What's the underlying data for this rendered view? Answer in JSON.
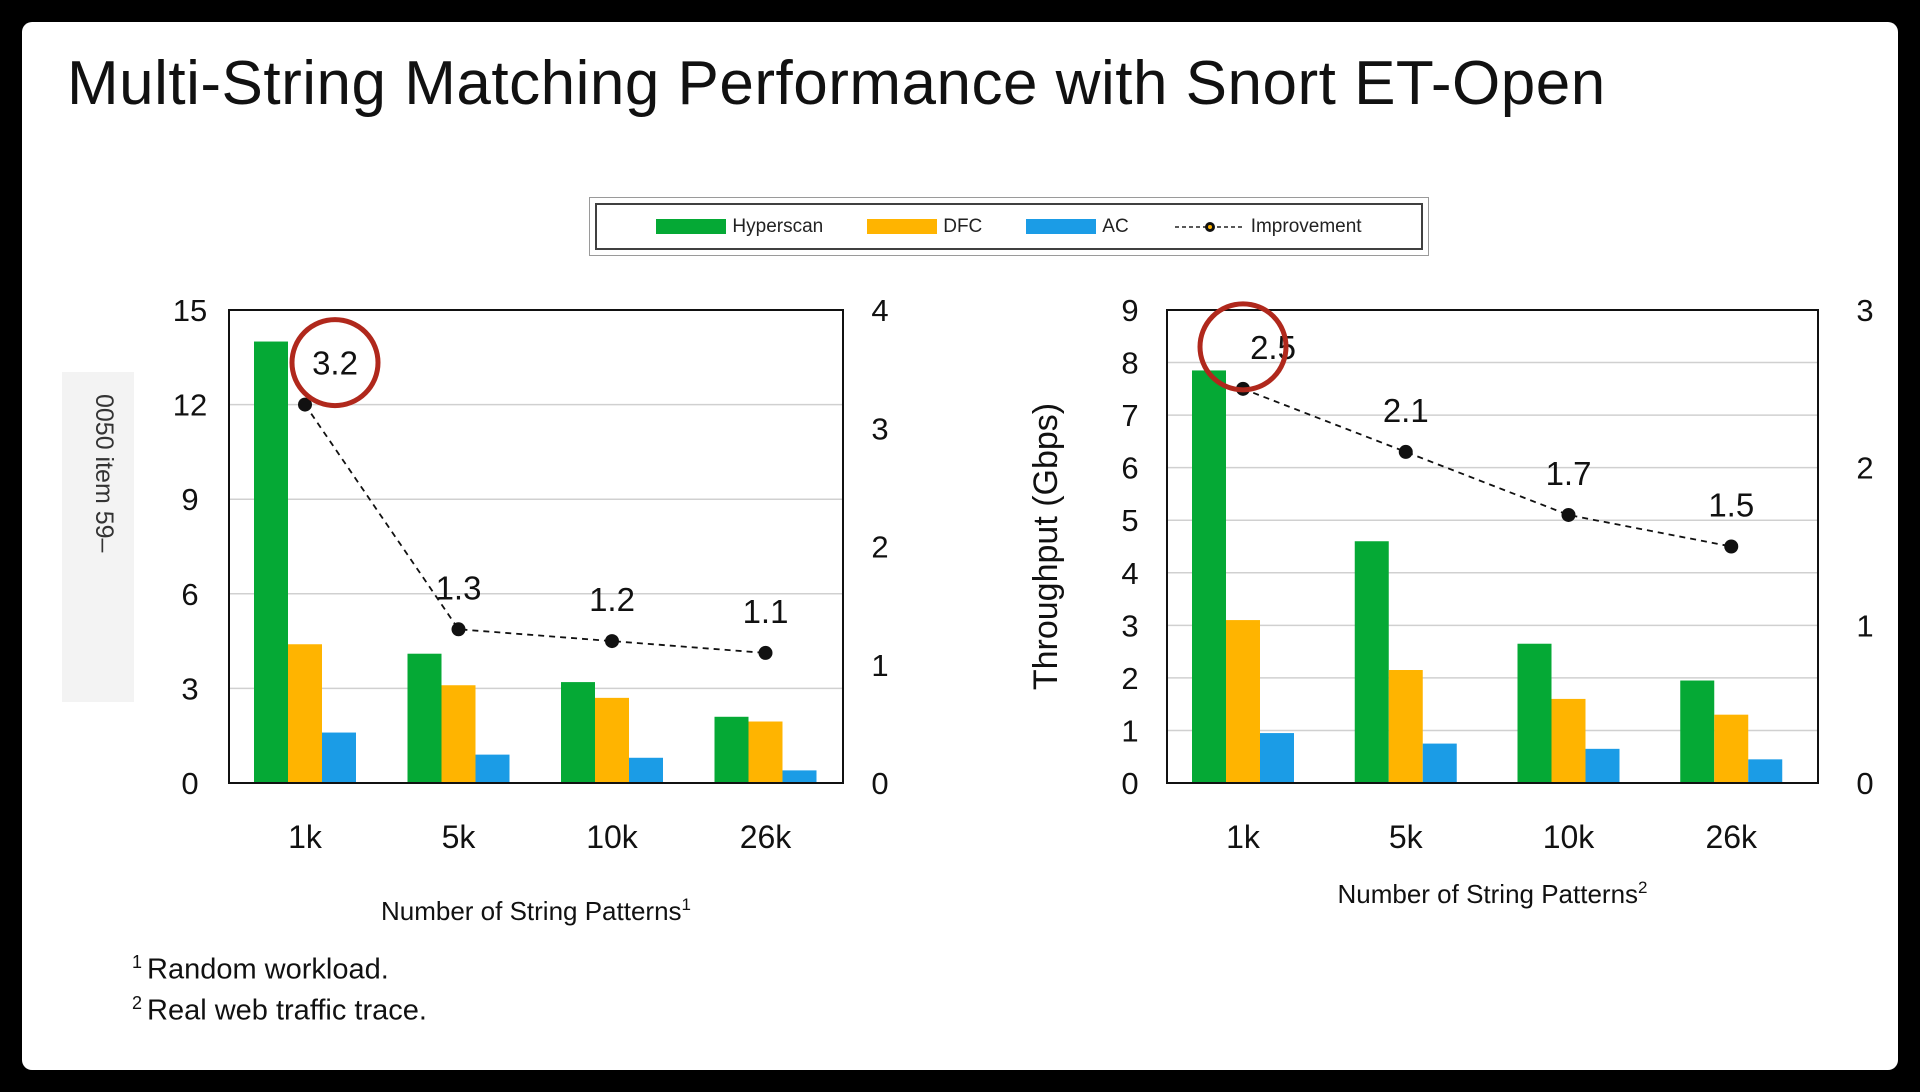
{
  "title": "Multi-String Matching Performance with Snort ET-Open",
  "side_label": "0050 item 59–",
  "colors": {
    "hyperscan": "#05A935",
    "dfc": "#FFB400",
    "ac": "#1B9CE6",
    "highlight": "#B0281C"
  },
  "legend": {
    "hyperscan": "Hyperscan",
    "dfc": "DFC",
    "ac": "AC",
    "improvement": "Improvement"
  },
  "footnotes": [
    {
      "mark": "1",
      "text": "Random workload."
    },
    {
      "mark": "2",
      "text": "Real web traffic trace."
    }
  ],
  "chart_data": [
    {
      "type": "bar",
      "categories": [
        "1k",
        "5k",
        "10k",
        "26k"
      ],
      "series": [
        {
          "name": "Hyperscan",
          "values": [
            14.0,
            4.1,
            3.2,
            2.1
          ]
        },
        {
          "name": "DFC",
          "values": [
            4.4,
            3.1,
            2.7,
            1.95
          ]
        },
        {
          "name": "AC",
          "values": [
            1.6,
            0.9,
            0.8,
            0.4
          ]
        }
      ],
      "line_series": {
        "name": "Improvement",
        "values": [
          3.2,
          1.3,
          1.2,
          1.1
        ],
        "labels": [
          "3.2",
          "1.3",
          "1.2",
          "1.1"
        ],
        "highlight_index": 0
      },
      "xlabel": "Number of String Patterns",
      "xlabel_sup": "1",
      "ylabel": "",
      "ylim": [
        0,
        15
      ],
      "yticks": [
        0,
        3,
        6,
        9,
        12,
        15
      ],
      "y2lim": [
        0,
        4
      ],
      "y2ticks": [
        0,
        1,
        2,
        3,
        4
      ],
      "grid": true
    },
    {
      "type": "bar",
      "categories": [
        "1k",
        "5k",
        "10k",
        "26k"
      ],
      "series": [
        {
          "name": "Hyperscan",
          "values": [
            7.85,
            4.6,
            2.65,
            1.95
          ]
        },
        {
          "name": "DFC",
          "values": [
            3.1,
            2.15,
            1.6,
            1.3
          ]
        },
        {
          "name": "AC",
          "values": [
            0.95,
            0.75,
            0.65,
            0.45
          ]
        }
      ],
      "line_series": {
        "name": "Improvement",
        "values": [
          2.5,
          2.1,
          1.7,
          1.5
        ],
        "labels": [
          "2.5",
          "2.1",
          "1.7",
          "1.5"
        ],
        "highlight_index": 0
      },
      "xlabel": "Number of String Patterns",
      "xlabel_sup": "2",
      "ylabel": "Throughput (Gbps)",
      "ylim": [
        0,
        9
      ],
      "yticks": [
        0,
        1,
        2,
        3,
        4,
        5,
        6,
        7,
        8,
        9
      ],
      "y2lim": [
        0,
        3
      ],
      "y2ticks": [
        0,
        1,
        2,
        3
      ],
      "grid": true
    }
  ]
}
